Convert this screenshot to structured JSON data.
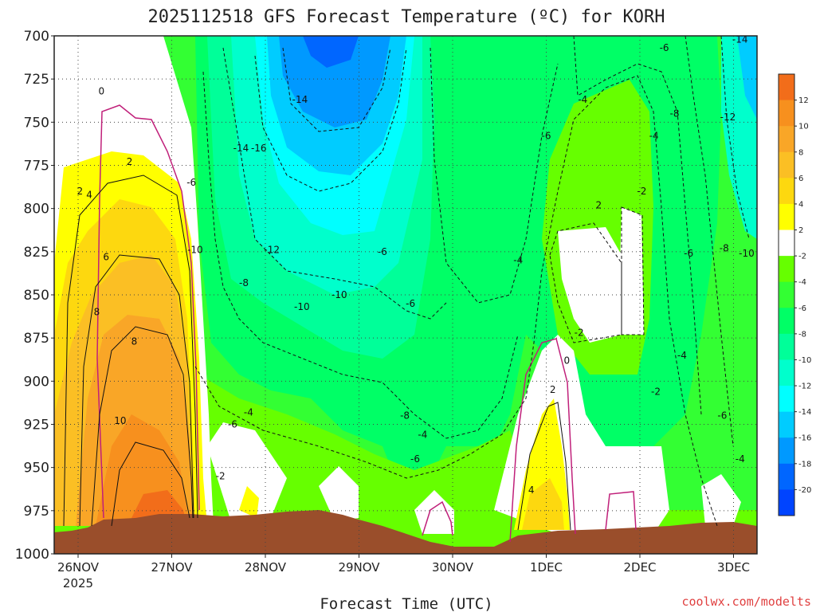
{
  "chart_data": {
    "type": "heatmap",
    "title": "2025112518 GFS Forecast Temperature (ºC) for KORH",
    "xlabel": "Forecast Time (UTC)",
    "ylabel": "",
    "credit": "coolwx.com/modelts",
    "x_ticks": [
      "26NOV",
      "27NOV",
      "28NOV",
      "29NOV",
      "30NOV",
      "1DEC",
      "2DEC",
      "3DEC"
    ],
    "x_year": "2025",
    "y_ticks": [
      "700",
      "725",
      "750",
      "775",
      "800",
      "825",
      "850",
      "875",
      "900",
      "925",
      "950",
      "975",
      "1000"
    ],
    "ylim": [
      1000,
      700
    ],
    "grid": true,
    "colorbar": {
      "levels": [
        "12",
        "10",
        "8",
        "6",
        "4",
        "2",
        "-2",
        "-4",
        "-6",
        "-8",
        "-10",
        "-12",
        "-14",
        "-16",
        "-18",
        "-20"
      ],
      "colors": [
        "#f26d1a",
        "#f7901e",
        "#f9a627",
        "#fbbf24",
        "#fdd80f",
        "#ffff00",
        "#ffffff",
        "#66ff00",
        "#33ff33",
        "#00ff66",
        "#00ff99",
        "#00ffcc",
        "#00ffff",
        "#00ccff",
        "#0099ff",
        "#0066ff",
        "#0044ff"
      ]
    },
    "contour_labels": [
      {
        "text": "0",
        "x": 0.25,
        "p": 732
      },
      {
        "text": "2",
        "x": 0.55,
        "p": 773
      },
      {
        "text": "2",
        "x": 0.02,
        "p": 790
      },
      {
        "text": "4",
        "x": 0.12,
        "p": 792
      },
      {
        "text": "6",
        "x": 0.3,
        "p": 828
      },
      {
        "text": "8",
        "x": 0.2,
        "p": 860
      },
      {
        "text": "8",
        "x": 0.6,
        "p": 877
      },
      {
        "text": "10",
        "x": 0.45,
        "p": 923
      },
      {
        "text": "-6",
        "x": 1.21,
        "p": 785
      },
      {
        "text": "-8",
        "x": 1.77,
        "p": 843
      },
      {
        "text": "-2",
        "x": 1.52,
        "p": 955
      },
      {
        "text": "-6",
        "x": 1.65,
        "p": 925
      },
      {
        "text": "-4",
        "x": 1.82,
        "p": 918
      },
      {
        "text": "-10",
        "x": 1.25,
        "p": 824
      },
      {
        "text": "-14",
        "x": 1.74,
        "p": 765
      },
      {
        "text": "-16",
        "x": 1.93,
        "p": 765
      },
      {
        "text": "-14",
        "x": 2.37,
        "p": 737
      },
      {
        "text": "-12",
        "x": 2.07,
        "p": 824
      },
      {
        "text": "-10",
        "x": 2.39,
        "p": 857
      },
      {
        "text": "-10",
        "x": 2.79,
        "p": 850
      },
      {
        "text": "-8",
        "x": 3.49,
        "p": 920
      },
      {
        "text": "-6",
        "x": 3.55,
        "p": 855
      },
      {
        "text": "-6",
        "x": 3.25,
        "p": 825
      },
      {
        "text": "-4",
        "x": 3.68,
        "p": 931
      },
      {
        "text": "-6",
        "x": 3.6,
        "p": 945
      },
      {
        "text": "-4",
        "x": 4.7,
        "p": 830
      },
      {
        "text": "-6",
        "x": 5.0,
        "p": 758
      },
      {
        "text": "-4",
        "x": 5.39,
        "p": 737
      },
      {
        "text": "-2",
        "x": 5.35,
        "p": 872
      },
      {
        "text": "0",
        "x": 5.22,
        "p": 888
      },
      {
        "text": "2",
        "x": 5.07,
        "p": 905
      },
      {
        "text": "4",
        "x": 4.84,
        "p": 963
      },
      {
        "text": "-2",
        "x": 6.02,
        "p": 790
      },
      {
        "text": "2",
        "x": 5.56,
        "p": 798
      },
      {
        "text": "-4",
        "x": 6.15,
        "p": 758
      },
      {
        "text": "-6",
        "x": 6.26,
        "p": 707
      },
      {
        "text": "-8",
        "x": 6.37,
        "p": 745
      },
      {
        "text": "-12",
        "x": 6.94,
        "p": 747
      },
      {
        "text": "-14",
        "x": 7.07,
        "p": 702
      },
      {
        "text": "-8",
        "x": 6.9,
        "p": 823
      },
      {
        "text": "-10",
        "x": 7.14,
        "p": 826
      },
      {
        "text": "-6",
        "x": 6.52,
        "p": 826
      },
      {
        "text": "-4",
        "x": 6.45,
        "p": 885
      },
      {
        "text": "-2",
        "x": 6.17,
        "p": 906
      },
      {
        "text": "-6",
        "x": 6.88,
        "p": 920
      },
      {
        "text": "-4",
        "x": 7.07,
        "p": 945
      }
    ]
  }
}
